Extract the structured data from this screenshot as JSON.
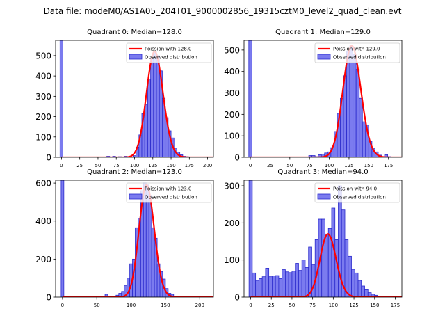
{
  "suptitle": "Data file: modeM0/AS1A05_204T01_9000002856_19315cztM0_level2_quad_clean.evt",
  "colors": {
    "bar_fill": "#7b7bef",
    "bar_edge": "#2a2acc",
    "poisson": "#ff0000"
  },
  "chart_data": [
    {
      "type": "bar",
      "title": "Quadrant 0: Median=128.0",
      "legend": [
        "Poission with 128.0",
        "Observed distribution"
      ],
      "legend_position": "top-right",
      "median": 128.0,
      "bin_width": 4,
      "xlim": [
        -8,
        208
      ],
      "ylim": [
        0,
        575
      ],
      "xticks": [
        0,
        25,
        50,
        75,
        100,
        125,
        150,
        175,
        200
      ],
      "yticks": [
        0,
        100,
        200,
        300,
        400,
        500
      ],
      "bins": [
        {
          "x": 0,
          "y": 575
        },
        {
          "x": 64,
          "y": 5
        },
        {
          "x": 72,
          "y": 5
        },
        {
          "x": 80,
          "y": 3
        },
        {
          "x": 88,
          "y": 5
        },
        {
          "x": 100,
          "y": 8
        },
        {
          "x": 104,
          "y": 50
        },
        {
          "x": 108,
          "y": 110
        },
        {
          "x": 112,
          "y": 215
        },
        {
          "x": 116,
          "y": 260
        },
        {
          "x": 120,
          "y": 385
        },
        {
          "x": 124,
          "y": 490
        },
        {
          "x": 128,
          "y": 520
        },
        {
          "x": 132,
          "y": 500
        },
        {
          "x": 136,
          "y": 425
        },
        {
          "x": 140,
          "y": 290
        },
        {
          "x": 144,
          "y": 195
        },
        {
          "x": 148,
          "y": 130
        },
        {
          "x": 152,
          "y": 95
        },
        {
          "x": 156,
          "y": 45
        },
        {
          "x": 160,
          "y": 25
        },
        {
          "x": 164,
          "y": 12
        },
        {
          "x": 168,
          "y": 5
        },
        {
          "x": 172,
          "y": 3
        },
        {
          "x": 176,
          "y": 2
        }
      ]
    },
    {
      "type": "bar",
      "title": "Quadrant 1: Median=129.0",
      "legend": [
        "Poission with 129.0",
        "Observed distribution"
      ],
      "legend_position": "top-right",
      "median": 129.0,
      "bin_width": 4,
      "xlim": [
        -8,
        192
      ],
      "ylim": [
        0,
        545
      ],
      "xticks": [
        0,
        25,
        50,
        75,
        100,
        125,
        150,
        175
      ],
      "yticks": [
        0,
        100,
        200,
        300,
        400,
        500
      ],
      "bins": [
        {
          "x": 0,
          "y": 545
        },
        {
          "x": 76,
          "y": 8
        },
        {
          "x": 80,
          "y": 8
        },
        {
          "x": 84,
          "y": 3
        },
        {
          "x": 88,
          "y": 12
        },
        {
          "x": 92,
          "y": 15
        },
        {
          "x": 96,
          "y": 20
        },
        {
          "x": 100,
          "y": 25
        },
        {
          "x": 104,
          "y": 45
        },
        {
          "x": 108,
          "y": 120
        },
        {
          "x": 112,
          "y": 205
        },
        {
          "x": 116,
          "y": 275
        },
        {
          "x": 120,
          "y": 380
        },
        {
          "x": 124,
          "y": 495
        },
        {
          "x": 128,
          "y": 520
        },
        {
          "x": 132,
          "y": 480
        },
        {
          "x": 136,
          "y": 410
        },
        {
          "x": 140,
          "y": 275
        },
        {
          "x": 144,
          "y": 165
        },
        {
          "x": 148,
          "y": 150
        },
        {
          "x": 152,
          "y": 75
        },
        {
          "x": 156,
          "y": 40
        },
        {
          "x": 160,
          "y": 25
        },
        {
          "x": 164,
          "y": 10
        },
        {
          "x": 172,
          "y": 12
        },
        {
          "x": 176,
          "y": 3
        }
      ]
    },
    {
      "type": "bar",
      "title": "Quadrant 2: Median=123.0",
      "legend": [
        "Poission with 123.0",
        "Observed distribution"
      ],
      "legend_position": "top-right",
      "median": 123.0,
      "bin_width": 4,
      "xlim": [
        -10,
        220
      ],
      "ylim": [
        0,
        615
      ],
      "xticks": [
        0,
        50,
        100,
        150,
        200
      ],
      "yticks": [
        0,
        200,
        400,
        600
      ],
      "bins": [
        {
          "x": 0,
          "y": 615
        },
        {
          "x": 64,
          "y": 15
        },
        {
          "x": 80,
          "y": 10
        },
        {
          "x": 84,
          "y": 20
        },
        {
          "x": 88,
          "y": 30
        },
        {
          "x": 92,
          "y": 60
        },
        {
          "x": 96,
          "y": 100
        },
        {
          "x": 100,
          "y": 175
        },
        {
          "x": 104,
          "y": 200
        },
        {
          "x": 108,
          "y": 365
        },
        {
          "x": 112,
          "y": 415
        },
        {
          "x": 116,
          "y": 560
        },
        {
          "x": 120,
          "y": 600
        },
        {
          "x": 124,
          "y": 590
        },
        {
          "x": 128,
          "y": 535
        },
        {
          "x": 132,
          "y": 365
        },
        {
          "x": 136,
          "y": 310
        },
        {
          "x": 140,
          "y": 175
        },
        {
          "x": 144,
          "y": 135
        },
        {
          "x": 148,
          "y": 95
        },
        {
          "x": 152,
          "y": 45
        },
        {
          "x": 156,
          "y": 20
        },
        {
          "x": 160,
          "y": 15
        },
        {
          "x": 164,
          "y": 5
        },
        {
          "x": 168,
          "y": 3
        },
        {
          "x": 172,
          "y": 2
        }
      ]
    },
    {
      "type": "bar",
      "title": "Quadrant 3: Median=94.0",
      "legend": [
        "Poission with 94.0",
        "Observed distribution"
      ],
      "legend_position": "top-right",
      "median": 94.0,
      "bin_width": 4,
      "xlim": [
        -8,
        183
      ],
      "ylim": [
        0,
        315
      ],
      "xticks": [
        0,
        25,
        50,
        75,
        100,
        125,
        150,
        175
      ],
      "yticks": [
        0,
        100,
        200,
        300
      ],
      "bins": [
        {
          "x": 0,
          "y": 315
        },
        {
          "x": 4,
          "y": 65
        },
        {
          "x": 8,
          "y": 45
        },
        {
          "x": 12,
          "y": 50
        },
        {
          "x": 16,
          "y": 55
        },
        {
          "x": 20,
          "y": 78
        },
        {
          "x": 24,
          "y": 55
        },
        {
          "x": 28,
          "y": 57
        },
        {
          "x": 32,
          "y": 58
        },
        {
          "x": 36,
          "y": 50
        },
        {
          "x": 40,
          "y": 74
        },
        {
          "x": 44,
          "y": 68
        },
        {
          "x": 48,
          "y": 66
        },
        {
          "x": 52,
          "y": 70
        },
        {
          "x": 56,
          "y": 91
        },
        {
          "x": 60,
          "y": 72
        },
        {
          "x": 64,
          "y": 100
        },
        {
          "x": 68,
          "y": 80
        },
        {
          "x": 72,
          "y": 135
        },
        {
          "x": 76,
          "y": 88
        },
        {
          "x": 80,
          "y": 155
        },
        {
          "x": 84,
          "y": 210
        },
        {
          "x": 88,
          "y": 210
        },
        {
          "x": 92,
          "y": 170
        },
        {
          "x": 96,
          "y": 185
        },
        {
          "x": 100,
          "y": 240
        },
        {
          "x": 104,
          "y": 155
        },
        {
          "x": 108,
          "y": 300
        },
        {
          "x": 112,
          "y": 235
        },
        {
          "x": 116,
          "y": 155
        },
        {
          "x": 120,
          "y": 110
        },
        {
          "x": 124,
          "y": 75
        },
        {
          "x": 128,
          "y": 65
        },
        {
          "x": 132,
          "y": 45
        },
        {
          "x": 136,
          "y": 30
        },
        {
          "x": 140,
          "y": 20
        },
        {
          "x": 144,
          "y": 12
        },
        {
          "x": 148,
          "y": 8
        },
        {
          "x": 152,
          "y": 5
        }
      ]
    }
  ]
}
